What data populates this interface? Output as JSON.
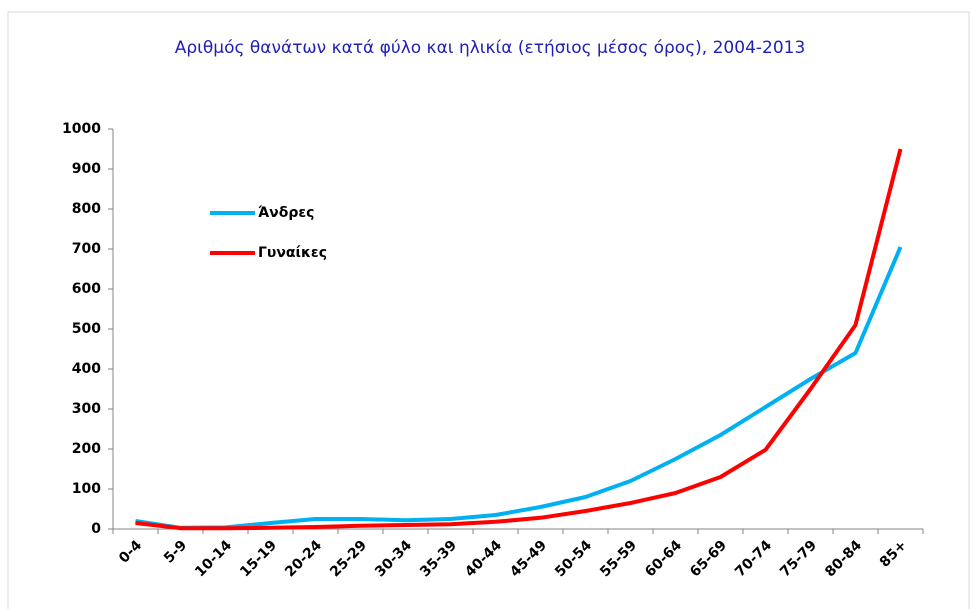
{
  "chart_data": {
    "type": "line",
    "title": "Αριθμός θανάτων κατά φύλο και ηλικία (ετήσιος μέσος όρος), 2004-2013",
    "categories": [
      "0-4",
      "5-9",
      "10-14",
      "15-19",
      "20-24",
      "25-29",
      "30-34",
      "35-39",
      "40-44",
      "45-49",
      "50-54",
      "55-59",
      "60-64",
      "65-69",
      "70-74",
      "75-79",
      "80-84",
      "85+"
    ],
    "series": [
      {
        "name": "Άνδρες",
        "color": "#00b0f0",
        "values": [
          20,
          3,
          4,
          15,
          25,
          25,
          22,
          25,
          35,
          55,
          80,
          120,
          175,
          235,
          305,
          375,
          440,
          705
        ]
      },
      {
        "name": "Γυναίκες",
        "color": "#ff0000",
        "values": [
          15,
          2,
          2,
          3,
          5,
          8,
          10,
          12,
          18,
          28,
          45,
          65,
          90,
          130,
          198,
          350,
          510,
          950
        ]
      }
    ],
    "ylim": [
      0,
      1000
    ],
    "yticks": [
      0,
      100,
      200,
      300,
      400,
      500,
      600,
      700,
      800,
      900,
      1000
    ],
    "grid": false
  }
}
